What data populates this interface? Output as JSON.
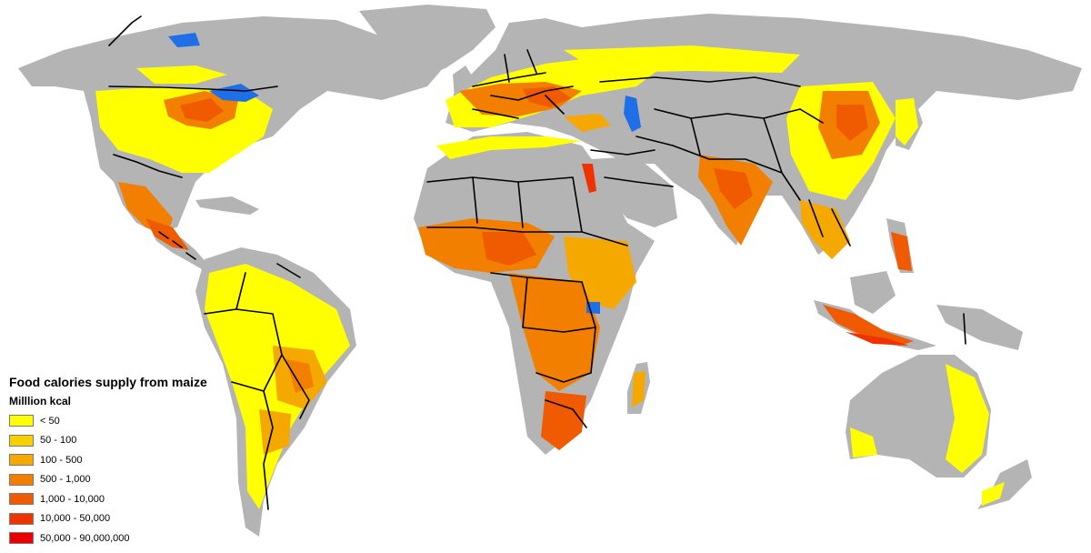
{
  "map": {
    "land_color": "#b4b4b4",
    "water_color": "#1e6fe8",
    "border_color": "#000000"
  },
  "legend": {
    "title": "Food calories supply from maize",
    "unit": "Milllion kcal",
    "classes": [
      {
        "label": "< 50",
        "color": "#ffff00"
      },
      {
        "label": "50 - 100",
        "color": "#f7d000"
      },
      {
        "label": "100 - 500",
        "color": "#f5a800"
      },
      {
        "label": "500 - 1,000",
        "color": "#f27f00"
      },
      {
        "label": "1,000 - 10,000",
        "color": "#f05a00"
      },
      {
        "label": "10,000 - 50,000",
        "color": "#ee3300"
      },
      {
        "label": "50,000 - 90,000,000",
        "color": "#ea0000"
      }
    ]
  }
}
